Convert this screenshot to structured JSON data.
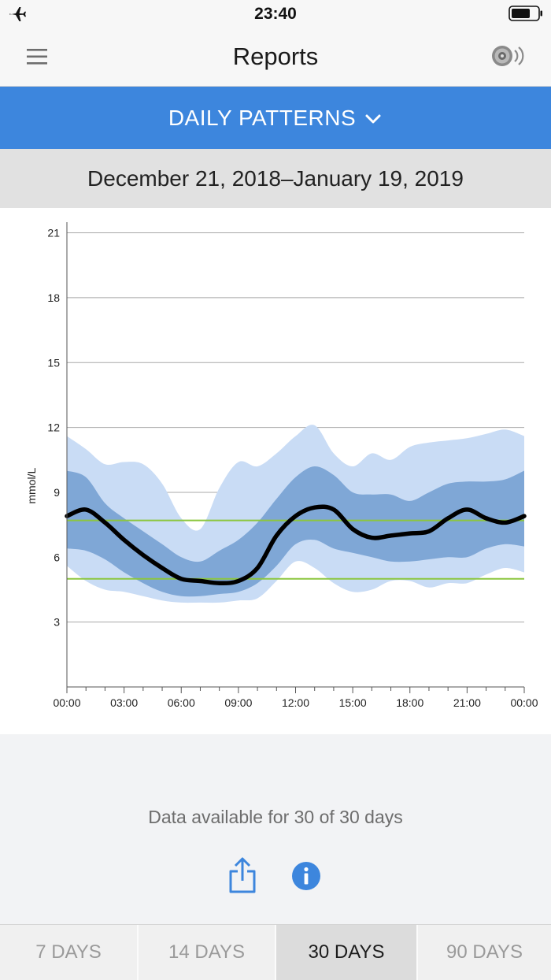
{
  "status_bar": {
    "time": "23:40"
  },
  "header": {
    "title": "Reports"
  },
  "report_selector": {
    "label": "DAILY PATTERNS"
  },
  "date_range": "December 21, 2018–January 19, 2019",
  "colors": {
    "accent": "#3d86dd",
    "band_outer": "#c9dcf5",
    "band_inner": "#7fa7d6",
    "median": "#000000",
    "target_line": "#8cc63f",
    "grid": "#a8a8a8"
  },
  "chart_data": {
    "type": "area",
    "title": "",
    "xlabel": "",
    "ylabel": "mmol/L",
    "ylim": [
      0,
      21
    ],
    "y_ticks": [
      3,
      6,
      9,
      12,
      15,
      18,
      21
    ],
    "x_tick_labels": [
      "00:00",
      "03:00",
      "06:00",
      "09:00",
      "12:00",
      "15:00",
      "18:00",
      "21:00",
      "00:00"
    ],
    "x_minor_step_hours": 1,
    "x_hours": [
      0,
      1,
      2,
      3,
      4,
      5,
      6,
      7,
      8,
      9,
      10,
      11,
      12,
      13,
      14,
      15,
      16,
      17,
      18,
      19,
      20,
      21,
      22,
      23,
      24
    ],
    "target_range": [
      5.0,
      7.7
    ],
    "series": [
      {
        "name": "10th-90th percentile upper",
        "values": [
          11.6,
          11.0,
          10.3,
          10.4,
          10.3,
          9.4,
          7.8,
          7.3,
          9.2,
          10.4,
          10.2,
          10.8,
          11.6,
          12.1,
          10.8,
          10.2,
          10.8,
          10.5,
          11.1,
          11.3,
          11.4,
          11.5,
          11.7,
          11.9,
          11.6
        ]
      },
      {
        "name": "25th-75th percentile upper",
        "values": [
          10.0,
          9.7,
          8.5,
          7.8,
          7.2,
          6.6,
          6.0,
          5.8,
          6.3,
          6.8,
          7.6,
          8.7,
          9.7,
          10.2,
          9.8,
          9.0,
          8.9,
          8.9,
          8.6,
          9.0,
          9.4,
          9.5,
          9.5,
          9.6,
          10.0
        ]
      },
      {
        "name": "Median",
        "values": [
          7.9,
          8.2,
          7.6,
          6.8,
          6.1,
          5.5,
          5.0,
          4.9,
          4.8,
          4.9,
          5.5,
          7.0,
          7.9,
          8.3,
          8.2,
          7.3,
          6.9,
          7.0,
          7.1,
          7.2,
          7.8,
          8.2,
          7.8,
          7.6,
          7.9
        ]
      },
      {
        "name": "25th-75th percentile lower",
        "values": [
          6.4,
          6.3,
          5.9,
          5.3,
          4.8,
          4.4,
          4.2,
          4.2,
          4.3,
          4.4,
          4.8,
          5.6,
          6.6,
          6.8,
          6.4,
          6.2,
          6.0,
          5.8,
          5.8,
          5.9,
          6.0,
          6.0,
          6.4,
          6.6,
          6.5
        ]
      },
      {
        "name": "10th-90th percentile lower",
        "values": [
          5.6,
          4.9,
          4.5,
          4.4,
          4.2,
          4.0,
          3.9,
          3.9,
          3.9,
          4.0,
          4.1,
          4.9,
          5.8,
          5.5,
          4.8,
          4.4,
          4.5,
          4.9,
          4.9,
          4.6,
          4.8,
          4.8,
          5.2,
          5.5,
          5.3
        ]
      }
    ]
  },
  "availability_text": "Data available for 30 of 30 days",
  "range_tabs": [
    {
      "label": "7 DAYS"
    },
    {
      "label": "14 DAYS"
    },
    {
      "label": "30 DAYS"
    },
    {
      "label": "90 DAYS"
    }
  ],
  "active_range": "30 DAYS"
}
